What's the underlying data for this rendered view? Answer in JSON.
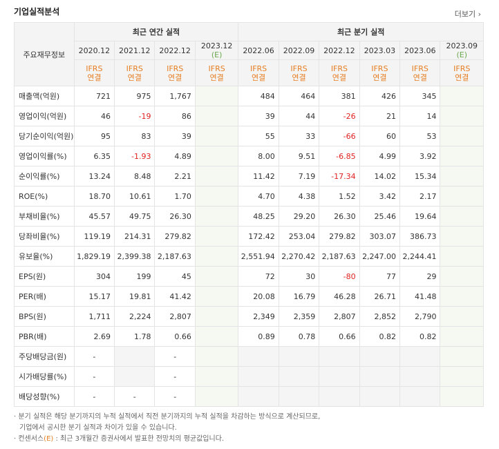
{
  "header": {
    "title": "기업실적분석",
    "more": "더보기"
  },
  "table": {
    "corner": "주요재무정보",
    "annual_group": "최근 연간 실적",
    "quarter_group": "최근 분기 실적",
    "annual_periods": [
      "2020.12",
      "2021.12",
      "2022.12",
      "2023.12"
    ],
    "quarter_periods": [
      "2022.06",
      "2022.09",
      "2022.12",
      "2023.03",
      "2023.06",
      "2023.09"
    ],
    "est_mark": "(E)",
    "ifrs_line1": "IFRS",
    "ifrs_line2": "연결",
    "rows": [
      {
        "label": "매출액(억원)",
        "values": [
          "721",
          "975",
          "1,767",
          "",
          "484",
          "464",
          "381",
          "426",
          "345",
          ""
        ]
      },
      {
        "label": "영업이익(억원)",
        "values": [
          "46",
          "-19",
          "86",
          "",
          "39",
          "44",
          "-26",
          "21",
          "14",
          ""
        ]
      },
      {
        "label": "당기순이익(억원)",
        "values": [
          "95",
          "83",
          "39",
          "",
          "55",
          "33",
          "-66",
          "60",
          "53",
          ""
        ]
      },
      {
        "label": "영업이익률(%)",
        "values": [
          "6.35",
          "-1.93",
          "4.89",
          "",
          "8.00",
          "9.51",
          "-6.85",
          "4.99",
          "3.92",
          ""
        ]
      },
      {
        "label": "순이익률(%)",
        "values": [
          "13.24",
          "8.48",
          "2.21",
          "",
          "11.42",
          "7.19",
          "-17.34",
          "14.02",
          "15.34",
          ""
        ]
      },
      {
        "label": "ROE(%)",
        "values": [
          "18.70",
          "10.61",
          "1.70",
          "",
          "4.70",
          "4.38",
          "1.52",
          "3.42",
          "2.17",
          ""
        ]
      },
      {
        "label": "부채비율(%)",
        "values": [
          "45.57",
          "49.75",
          "26.30",
          "",
          "48.25",
          "29.20",
          "26.30",
          "25.46",
          "19.64",
          ""
        ]
      },
      {
        "label": "당좌비율(%)",
        "values": [
          "119.19",
          "214.31",
          "279.82",
          "",
          "172.42",
          "253.04",
          "279.82",
          "303.07",
          "386.73",
          ""
        ]
      },
      {
        "label": "유보율(%)",
        "values": [
          "1,829.19",
          "2,399.38",
          "2,187.63",
          "",
          "2,551.94",
          "2,270.42",
          "2,187.63",
          "2,247.00",
          "2,244.41",
          ""
        ]
      },
      {
        "label": "EPS(원)",
        "values": [
          "304",
          "199",
          "45",
          "",
          "72",
          "30",
          "-80",
          "77",
          "29",
          ""
        ]
      },
      {
        "label": "PER(배)",
        "values": [
          "15.17",
          "19.81",
          "41.42",
          "",
          "20.08",
          "16.79",
          "46.28",
          "26.71",
          "41.48",
          ""
        ]
      },
      {
        "label": "BPS(원)",
        "values": [
          "1,711",
          "2,224",
          "2,807",
          "",
          "2,349",
          "2,359",
          "2,807",
          "2,852",
          "2,790",
          ""
        ]
      },
      {
        "label": "PBR(배)",
        "values": [
          "2.69",
          "1.78",
          "0.66",
          "",
          "0.89",
          "0.78",
          "0.66",
          "0.82",
          "0.82",
          ""
        ]
      },
      {
        "label": "주당배당금(원)",
        "values": [
          "-",
          "",
          "-",
          "",
          "",
          "",
          "",
          "",
          "",
          ""
        ]
      },
      {
        "label": "시가배당률(%)",
        "values": [
          "-",
          "",
          "-",
          "",
          "",
          "",
          "",
          "",
          "",
          ""
        ]
      },
      {
        "label": "배당성향(%)",
        "values": [
          "-",
          "-",
          "-",
          "",
          "",
          "",
          "",
          "",
          "",
          ""
        ]
      }
    ]
  },
  "notes": {
    "line1": "분기 실적은 해당 분기까지의 누적 실적에서 직전 분기까지의 누적 실적을 차감하는 방식으로 계산되므로,",
    "line2": "기업에서 공시한 분기 실적과 차이가 있을 수 있습니다.",
    "line3_prefix": "컨센서스",
    "line3_mark": "(E)",
    "line3_suffix": ": 최근 3개월간 증권사에서 발표한 전망치의 평균값입니다."
  }
}
